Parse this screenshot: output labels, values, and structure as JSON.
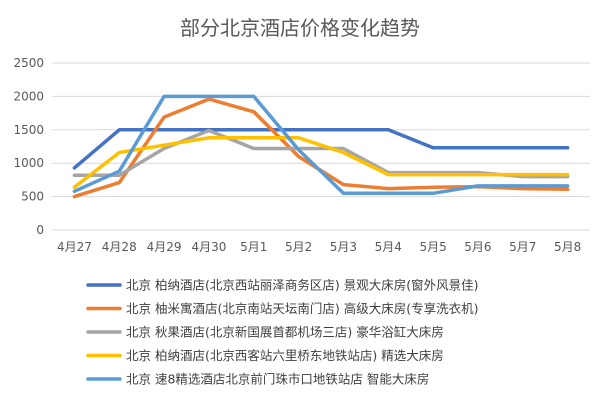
{
  "chart_data": {
    "type": "line",
    "title": "部分北京酒店价格变化趋势",
    "categories": [
      "4月27",
      "4月28",
      "4月29",
      "4月30",
      "5月1",
      "5月2",
      "5月3",
      "5月4",
      "5月5",
      "5月6",
      "5月7",
      "5月8"
    ],
    "ylim": [
      0,
      2500
    ],
    "yticks": [
      0,
      500,
      1000,
      1500,
      2000,
      2500
    ],
    "grid": true,
    "legend_position": "bottom",
    "series": [
      {
        "name": "北京 柏纳酒店(北京西站丽泽商务区店) 景观大床房(窗外风景佳)",
        "color": "#4472c4",
        "values": [
          930,
          1500,
          1500,
          1500,
          1500,
          1500,
          1500,
          1500,
          1230,
          1230,
          1230,
          1230
        ]
      },
      {
        "name": "北京 柚米寓酒店(北京南站天坛南门店) 高级大床房(专享洗衣机)",
        "color": "#ed7d31",
        "values": [
          500,
          710,
          1690,
          1960,
          1770,
          1100,
          680,
          620,
          640,
          650,
          620,
          610
        ]
      },
      {
        "name": "北京 秋果酒店(北京新国展首都机场三店) 豪华浴缸大床房",
        "color": "#a5a5a5",
        "values": [
          820,
          820,
          1220,
          1490,
          1220,
          1220,
          1220,
          860,
          860,
          860,
          800,
          800
        ]
      },
      {
        "name": "北京 柏纳酒店(北京西客站六里桥东地铁站店) 精选大床房",
        "color": "#ffc000",
        "values": [
          640,
          1160,
          1270,
          1380,
          1380,
          1380,
          1160,
          830,
          830,
          830,
          830,
          830
        ]
      },
      {
        "name": "北京 速8精选酒店北京前门珠市口地铁站店 智能大床房",
        "color": "#5b9bd5",
        "values": [
          580,
          880,
          2000,
          2000,
          2000,
          1200,
          550,
          550,
          550,
          660,
          660,
          660
        ]
      }
    ]
  }
}
